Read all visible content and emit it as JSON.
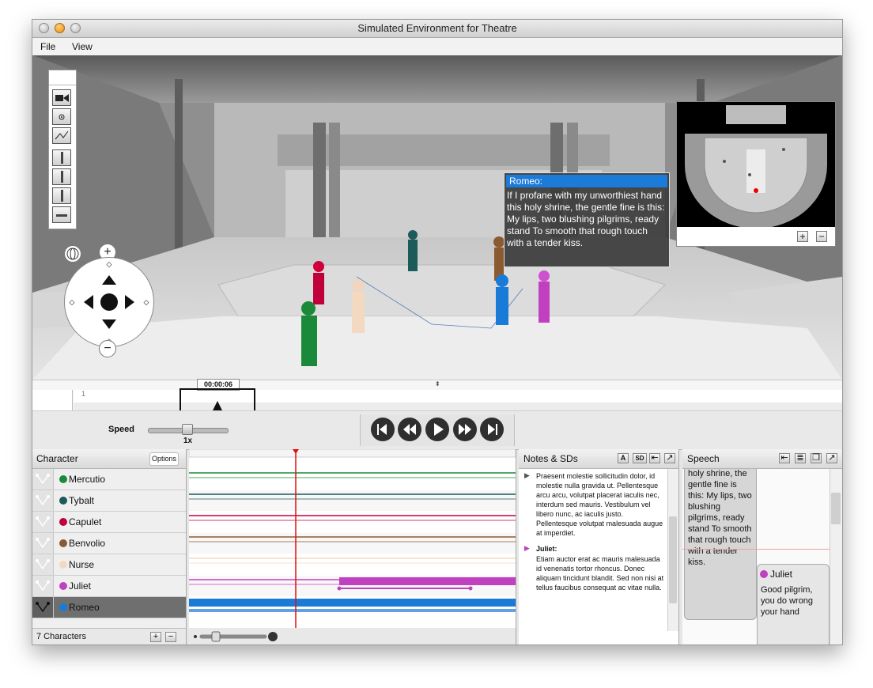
{
  "window": {
    "title": "Simulated Environment for Theatre"
  },
  "menu": [
    "File",
    "View"
  ],
  "stage": {
    "bubble_speaker": "Romeo:",
    "bubble_text": "If I profane with my unworthiest hand this holy shrine, the gentle fine is this: My lips, two blushing pilgrims, ready stand To smooth that rough touch with a tender kiss."
  },
  "minimap": {
    "plus": "+",
    "minus": "−"
  },
  "timeline": {
    "time": "00:00:06",
    "marker": "1"
  },
  "speed": {
    "label": "Speed",
    "value": "1x"
  },
  "characters": {
    "header": "Character",
    "options": "Options",
    "count": "7 Characters",
    "list": [
      {
        "name": "Mercutio",
        "color": "#1a8a3a"
      },
      {
        "name": "Tybalt",
        "color": "#1d5a5a"
      },
      {
        "name": "Capulet",
        "color": "#c0003a"
      },
      {
        "name": "Benvolio",
        "color": "#8a5a30"
      },
      {
        "name": "Nurse",
        "color": "#f2d9c0"
      },
      {
        "name": "Juliet",
        "color": "#c040c0"
      },
      {
        "name": "Romeo",
        "color": "#1a7ad8"
      }
    ]
  },
  "notes": {
    "header": "Notes & SDs",
    "btn_a": "A",
    "btn_sd": "SD",
    "entry1": "Praesent molestie sollicitudin dolor, id molestie nulla gravida ut. Pellentesque arcu arcu, volutpat placerat iaculis nec, interdum sed mauris. Vestibulum vel libero nunc, ac iaculis justo. Pellentesque volutpat malesuada augue at imperdiet.",
    "entry2_speaker": "Juliet:",
    "entry2": "Etiam auctor erat ac mauris malesuada id venenatis tortor rhoncus. Donec aliquam tincidunt blandit. Sed non nisi at tellus faucibus consequat ac vitae nulla."
  },
  "speech": {
    "header": "Speech",
    "card1": "holy shrine, the gentle fine is this: My lips, two blushing pilgrims, ready stand To smooth that rough touch with a tender kiss.",
    "card2_speaker": "Juliet",
    "card2": "Good pilgrim, you do wrong your hand"
  }
}
